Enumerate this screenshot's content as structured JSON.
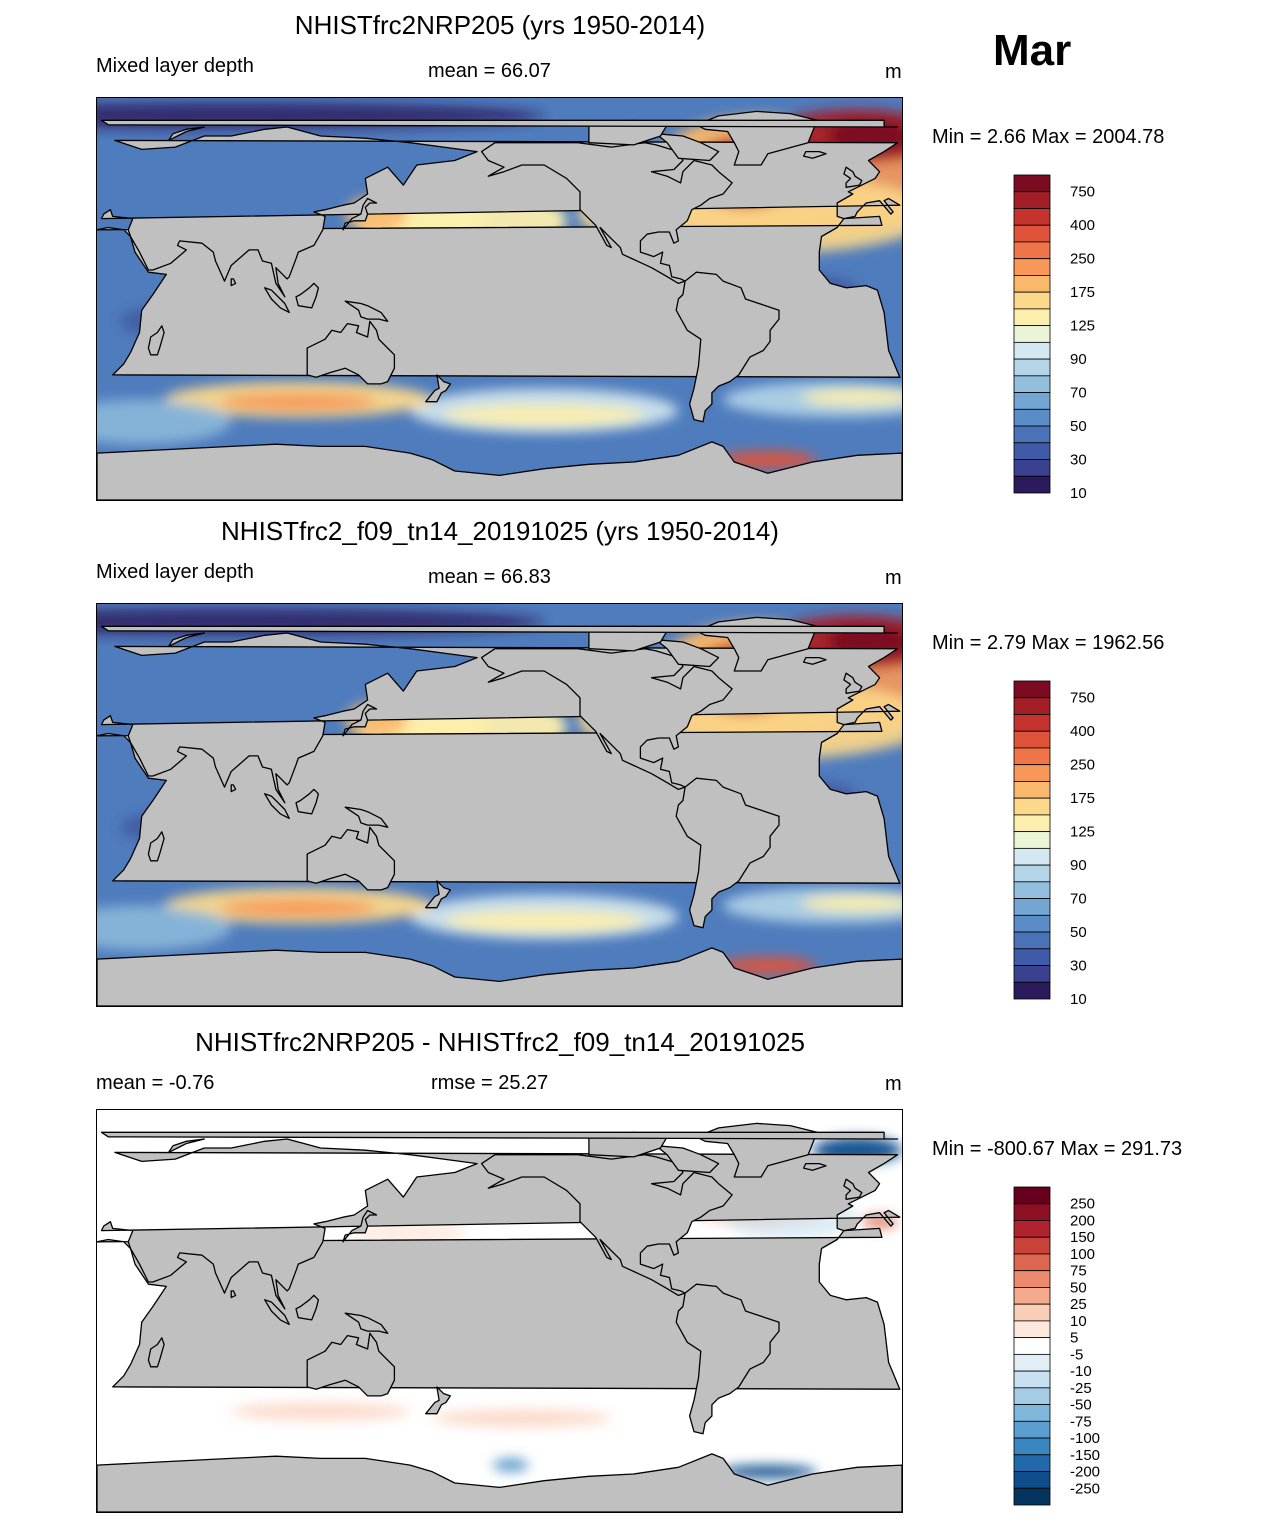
{
  "month": "Mar",
  "panels": [
    {
      "id": "p1",
      "title": "NHISTfrc2NRP205 (yrs 1950-2014)",
      "left_label": "Mixed layer depth",
      "center_label": "mean =  66.07",
      "units": "m",
      "minmax": "Min =    2.66 Max = 2004.78",
      "map_kind": "field"
    },
    {
      "id": "p2",
      "title": "NHISTfrc2_f09_tn14_20191025 (yrs 1950-2014)",
      "left_label": "Mixed layer depth",
      "center_label": "mean =  66.83",
      "units": "m",
      "minmax": "Min =    2.79 Max = 1962.56",
      "map_kind": "field"
    },
    {
      "id": "p3",
      "title": "NHISTfrc2NRP205 - NHISTfrc2_f09_tn14_20191025",
      "left_label": "mean =  -0.76",
      "center_label": "rmse =  25.27",
      "units": "m",
      "minmax": "Min = -800.67 Max = 291.73",
      "map_kind": "diff"
    }
  ],
  "colorbar_field": {
    "colors": [
      "#2b1b5c",
      "#3a4290",
      "#3f5aa8",
      "#4a72b8",
      "#5a8cc6",
      "#73a6d2",
      "#92bfdd",
      "#b4d5e8",
      "#d3e8f0",
      "#eaf5d8",
      "#fcefad",
      "#fbd88a",
      "#f9b86c",
      "#f79858",
      "#ef7448",
      "#de533a",
      "#c5332e",
      "#a31e27",
      "#7a0b20"
    ],
    "labels": [
      "750",
      "400",
      "250",
      "175",
      "125",
      "90",
      "70",
      "50",
      "30",
      "10"
    ]
  },
  "colorbar_diff": {
    "colors": [
      "#05345f",
      "#0f4d8c",
      "#2169ab",
      "#3a86c0",
      "#5a9fcf",
      "#7fb7db",
      "#a5cce5",
      "#c8e0ef",
      "#e2eef6",
      "#ffffff",
      "#fde8dd",
      "#f9cdb6",
      "#f4ab8d",
      "#eb8a6c",
      "#dc6650",
      "#c8423a",
      "#b0232e",
      "#8c0f24",
      "#67001f"
    ],
    "labels": [
      "250",
      "200",
      "150",
      "100",
      "75",
      "50",
      "25",
      "10",
      "5",
      "-5",
      "-10",
      "-25",
      "-50",
      "-75",
      "-100",
      "-150",
      "-200",
      "-250"
    ]
  },
  "colors": {
    "land": "#c0c0c0",
    "coast": "#000000",
    "ocean_background": "#4f7cbd"
  }
}
